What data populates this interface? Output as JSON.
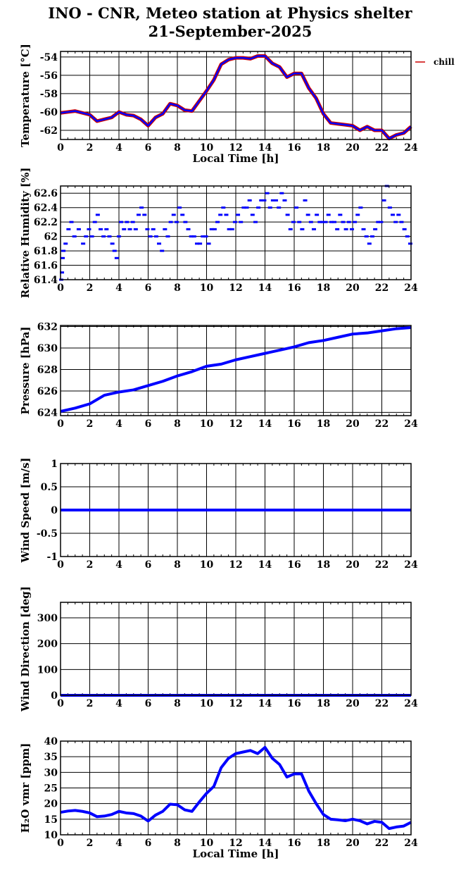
{
  "header": {
    "title_line1": "INO - CNR, Meteo station at Physics shelter",
    "title_line2": "21-September-2025"
  },
  "colors": {
    "data": "#0000ff",
    "overlay": "#cc0000",
    "grid": "#000000"
  },
  "chart_data": [
    {
      "type": "line",
      "ylabel": "Temperature [°C]",
      "xlabel": "Local Time [h]",
      "xlim": [
        0,
        24
      ],
      "ylim": [
        -63,
        -53.4
      ],
      "xticks": [
        0,
        2,
        4,
        6,
        8,
        10,
        12,
        14,
        16,
        18,
        20,
        22,
        24
      ],
      "yticks": [
        -62,
        -60,
        -58,
        -56,
        -54
      ],
      "grid": true,
      "legend": {
        "position": "right",
        "entries": [
          "chill"
        ]
      },
      "series": [
        {
          "name": "chill",
          "color": "#cc0000",
          "overlay_of": "temperature"
        },
        {
          "name": "",
          "color": "#0000ff",
          "x": [
            0,
            0.5,
            1,
            1.5,
            2,
            2.5,
            3,
            3.5,
            4,
            4.5,
            5,
            5.5,
            6,
            6.5,
            7,
            7.5,
            8,
            8.5,
            9,
            9.5,
            10,
            10.5,
            11,
            11.5,
            12,
            12.5,
            13,
            13.5,
            14,
            14.5,
            15,
            15.5,
            16,
            16.5,
            17,
            17.5,
            18,
            18.5,
            19,
            19.5,
            20,
            20.5,
            21,
            21.5,
            22,
            22.5,
            23,
            23.5,
            24
          ],
          "y": [
            -60.1,
            -60.0,
            -59.9,
            -60.1,
            -60.3,
            -61.0,
            -60.8,
            -60.6,
            -60.0,
            -60.3,
            -60.4,
            -60.8,
            -61.5,
            -60.6,
            -60.2,
            -59.1,
            -59.3,
            -59.8,
            -59.9,
            -58.8,
            -57.7,
            -56.5,
            -54.8,
            -54.3,
            -54.1,
            -54.1,
            -54.2,
            -53.9,
            -53.9,
            -54.7,
            -55.1,
            -56.2,
            -55.8,
            -55.8,
            -57.4,
            -58.5,
            -60.2,
            -61.2,
            -61.3,
            -61.4,
            -61.5,
            -62.0,
            -61.6,
            -62.0,
            -62.0,
            -62.9,
            -62.5,
            -62.3,
            -61.6
          ]
        }
      ]
    },
    {
      "type": "scatter",
      "ylabel": "Relative Humidity [%]",
      "xlim": [
        0,
        24
      ],
      "ylim": [
        61.4,
        62.7
      ],
      "xticks": [
        0,
        2,
        4,
        6,
        8,
        10,
        12,
        14,
        16,
        18,
        20,
        22,
        24
      ],
      "yticks": [
        61.4,
        61.6,
        61.8,
        62,
        62.2,
        62.4,
        62.6
      ],
      "grid": true,
      "series": [
        {
          "name": "",
          "color": "#0000ff",
          "x": [
            0.0,
            0.05,
            0.1,
            0.15,
            0.3,
            0.5,
            0.7,
            0.9,
            1.2,
            1.5,
            1.7,
            1.9,
            2.1,
            2.3,
            2.5,
            2.7,
            2.9,
            3.1,
            3.3,
            3.5,
            3.65,
            3.8,
            3.95,
            4.1,
            4.3,
            4.5,
            4.7,
            4.9,
            5.1,
            5.3,
            5.5,
            5.7,
            5.9,
            6.1,
            6.3,
            6.5,
            6.7,
            6.9,
            7.1,
            7.3,
            7.5,
            7.7,
            7.9,
            8.1,
            8.3,
            8.5,
            8.7,
            8.9,
            9.1,
            9.3,
            9.5,
            9.7,
            9.9,
            10.1,
            10.3,
            10.5,
            10.7,
            10.9,
            11.1,
            11.3,
            11.5,
            11.7,
            11.9,
            12.1,
            12.3,
            12.5,
            12.7,
            12.9,
            13.1,
            13.3,
            13.5,
            13.7,
            13.9,
            14.1,
            14.3,
            14.5,
            14.7,
            14.9,
            15.1,
            15.3,
            15.5,
            15.7,
            15.9,
            16.1,
            16.3,
            16.5,
            16.7,
            16.9,
            17.1,
            17.3,
            17.5,
            17.7,
            17.9,
            18.1,
            18.3,
            18.5,
            18.7,
            18.9,
            19.1,
            19.3,
            19.5,
            19.7,
            19.9,
            20.1,
            20.3,
            20.5,
            20.7,
            20.9,
            21.1,
            21.3,
            21.5,
            21.7,
            21.9,
            22.1,
            22.3,
            22.5,
            22.7,
            22.9,
            23.1,
            23.3,
            23.5,
            23.7,
            23.9
          ],
          "y": [
            61.4,
            61.5,
            61.7,
            61.8,
            61.9,
            62.1,
            62.2,
            62.0,
            62.1,
            61.9,
            62.0,
            62.1,
            62.0,
            62.2,
            62.3,
            62.1,
            62.0,
            62.1,
            62.0,
            61.9,
            61.8,
            61.7,
            62.0,
            62.2,
            62.1,
            62.2,
            62.1,
            62.2,
            62.1,
            62.3,
            62.4,
            62.3,
            62.1,
            62.0,
            62.1,
            62.0,
            61.9,
            61.8,
            62.1,
            62.0,
            62.2,
            62.3,
            62.2,
            62.4,
            62.3,
            62.2,
            62.1,
            62.0,
            62.0,
            61.9,
            61.9,
            62.0,
            62.0,
            61.9,
            62.1,
            62.1,
            62.2,
            62.3,
            62.4,
            62.3,
            62.1,
            62.1,
            62.2,
            62.3,
            62.2,
            62.4,
            62.4,
            62.5,
            62.3,
            62.2,
            62.4,
            62.5,
            62.5,
            62.6,
            62.4,
            62.5,
            62.5,
            62.4,
            62.6,
            62.5,
            62.3,
            62.1,
            62.2,
            62.4,
            62.2,
            62.1,
            62.5,
            62.3,
            62.2,
            62.1,
            62.3,
            62.2,
            62.2,
            62.2,
            62.3,
            62.2,
            62.2,
            62.1,
            62.3,
            62.2,
            62.1,
            62.2,
            62.1,
            62.2,
            62.3,
            62.4,
            62.1,
            62.0,
            61.9,
            62.0,
            62.1,
            62.2,
            62.2,
            62.5,
            62.7,
            62.4,
            62.3,
            62.2,
            62.3,
            62.2,
            62.1,
            62.0,
            61.9
          ]
        }
      ]
    },
    {
      "type": "line",
      "ylabel": "Pressure [hPa]",
      "xlim": [
        0,
        24
      ],
      "ylim": [
        623.7,
        632.1
      ],
      "xticks": [
        0,
        2,
        4,
        6,
        8,
        10,
        12,
        14,
        16,
        18,
        20,
        22,
        24
      ],
      "yticks": [
        624,
        626,
        628,
        630,
        632
      ],
      "grid": true,
      "series": [
        {
          "name": "",
          "color": "#0000ff",
          "x": [
            0,
            1,
            2,
            3,
            4,
            5,
            6,
            7,
            8,
            9,
            10,
            11,
            12,
            13,
            14,
            15,
            16,
            17,
            18,
            19,
            20,
            21,
            22,
            23,
            24
          ],
          "y": [
            624.1,
            624.4,
            624.8,
            625.6,
            625.9,
            626.1,
            626.5,
            626.9,
            627.4,
            627.8,
            628.3,
            628.5,
            628.9,
            629.2,
            629.5,
            629.8,
            630.1,
            630.5,
            630.7,
            631.0,
            631.3,
            631.4,
            631.6,
            631.8,
            631.9
          ]
        }
      ]
    },
    {
      "type": "line",
      "ylabel": "Wind Speed [m/s]",
      "xlim": [
        0,
        24
      ],
      "ylim": [
        -1,
        1
      ],
      "xticks": [
        0,
        2,
        4,
        6,
        8,
        10,
        12,
        14,
        16,
        18,
        20,
        22,
        24
      ],
      "yticks": [
        -1,
        -0.5,
        0,
        0.5,
        1
      ],
      "grid": true,
      "series": [
        {
          "name": "",
          "color": "#0000ff",
          "x": [
            0,
            24
          ],
          "y": [
            0,
            0
          ]
        }
      ]
    },
    {
      "type": "line",
      "ylabel": "Wind Direction [deg]",
      "xlim": [
        0,
        24
      ],
      "ylim": [
        0,
        360
      ],
      "xticks": [
        0,
        2,
        4,
        6,
        8,
        10,
        12,
        14,
        16,
        18,
        20,
        22,
        24
      ],
      "yticks": [
        0,
        100,
        200,
        300
      ],
      "grid": true,
      "series": [
        {
          "name": "",
          "color": "#0000ff",
          "x": [
            0,
            24
          ],
          "y": [
            0,
            0
          ]
        }
      ]
    },
    {
      "type": "line",
      "ylabel": "H₂O vmr [ppm]",
      "xlabel": "Local Time [h]",
      "xlim": [
        0,
        24
      ],
      "ylim": [
        10,
        40
      ],
      "xticks": [
        0,
        2,
        4,
        6,
        8,
        10,
        12,
        14,
        16,
        18,
        20,
        22,
        24
      ],
      "yticks": [
        10,
        15,
        20,
        25,
        30,
        35,
        40
      ],
      "grid": true,
      "series": [
        {
          "name": "",
          "color": "#0000ff",
          "x": [
            0,
            0.5,
            1,
            1.5,
            2,
            2.5,
            3,
            3.5,
            4,
            4.5,
            5,
            5.5,
            6,
            6.5,
            7,
            7.5,
            8,
            8.5,
            9,
            9.5,
            10,
            10.5,
            11,
            11.5,
            12,
            12.5,
            13,
            13.5,
            14,
            14.5,
            15,
            15.5,
            16,
            16.5,
            17,
            17.5,
            18,
            18.5,
            19,
            19.5,
            20,
            20.5,
            21,
            21.5,
            22,
            22.5,
            23,
            23.5,
            24
          ],
          "y": [
            17.2,
            17.6,
            17.8,
            17.5,
            17.0,
            15.8,
            16.0,
            16.5,
            17.5,
            17.0,
            16.8,
            16.0,
            14.4,
            16.3,
            17.5,
            19.8,
            19.6,
            18.0,
            17.5,
            20.5,
            23.3,
            25.5,
            31.5,
            34.5,
            36.0,
            36.5,
            37.0,
            36.0,
            38.0,
            34.5,
            32.5,
            28.5,
            29.5,
            29.5,
            24.0,
            20.0,
            16.5,
            15.0,
            14.8,
            14.5,
            15.0,
            14.5,
            13.5,
            14.3,
            14.0,
            12.0,
            12.5,
            12.8,
            14.0
          ]
        }
      ]
    }
  ]
}
